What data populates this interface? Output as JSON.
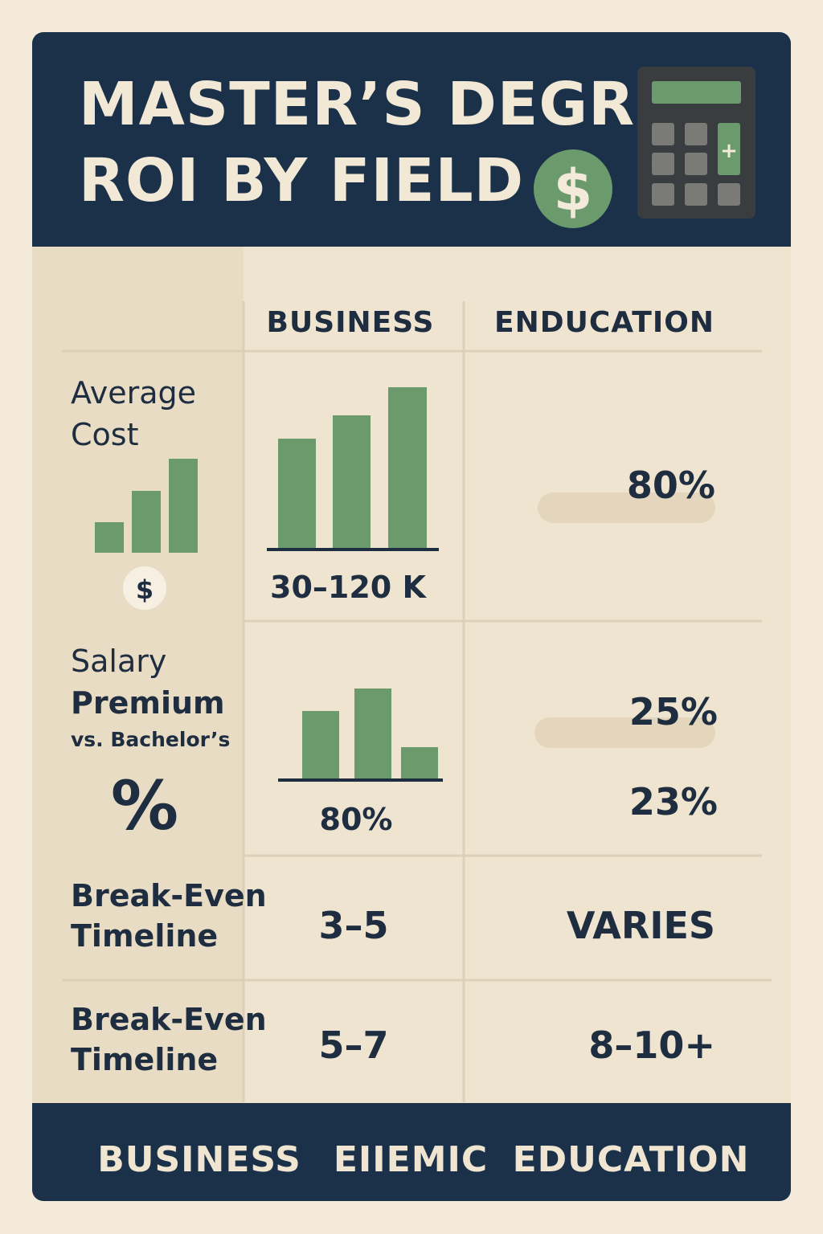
{
  "header": {
    "title_lines": [
      "MASTER’S DEGRE",
      "ROI BY FIELD"
    ],
    "coin_symbol": "$",
    "calculator_key": "+"
  },
  "table": {
    "columns": [
      "BUSINESS",
      "ENDUCATION"
    ],
    "rows": [
      {
        "label": [
          "Average",
          "Cost"
        ],
        "icon": "$",
        "business": "30–120 K",
        "education": [
          "80%"
        ]
      },
      {
        "label": [
          "Salary",
          "Premium"
        ],
        "sublabel": "vs. Bachelor’s",
        "icon": "%",
        "business": "80%",
        "education": [
          "25%",
          "23%"
        ]
      },
      {
        "label": [
          "Break-Even",
          "Timeline"
        ],
        "business": "3–5",
        "education": [
          "VARIES"
        ]
      },
      {
        "label": [
          "Break-Even",
          "Timeline"
        ],
        "business": "5–7",
        "education": [
          "8–10+"
        ]
      }
    ]
  },
  "footer": {
    "items": [
      "BUSINESS",
      "EIIEMIC",
      "EDUCATION"
    ]
  }
}
